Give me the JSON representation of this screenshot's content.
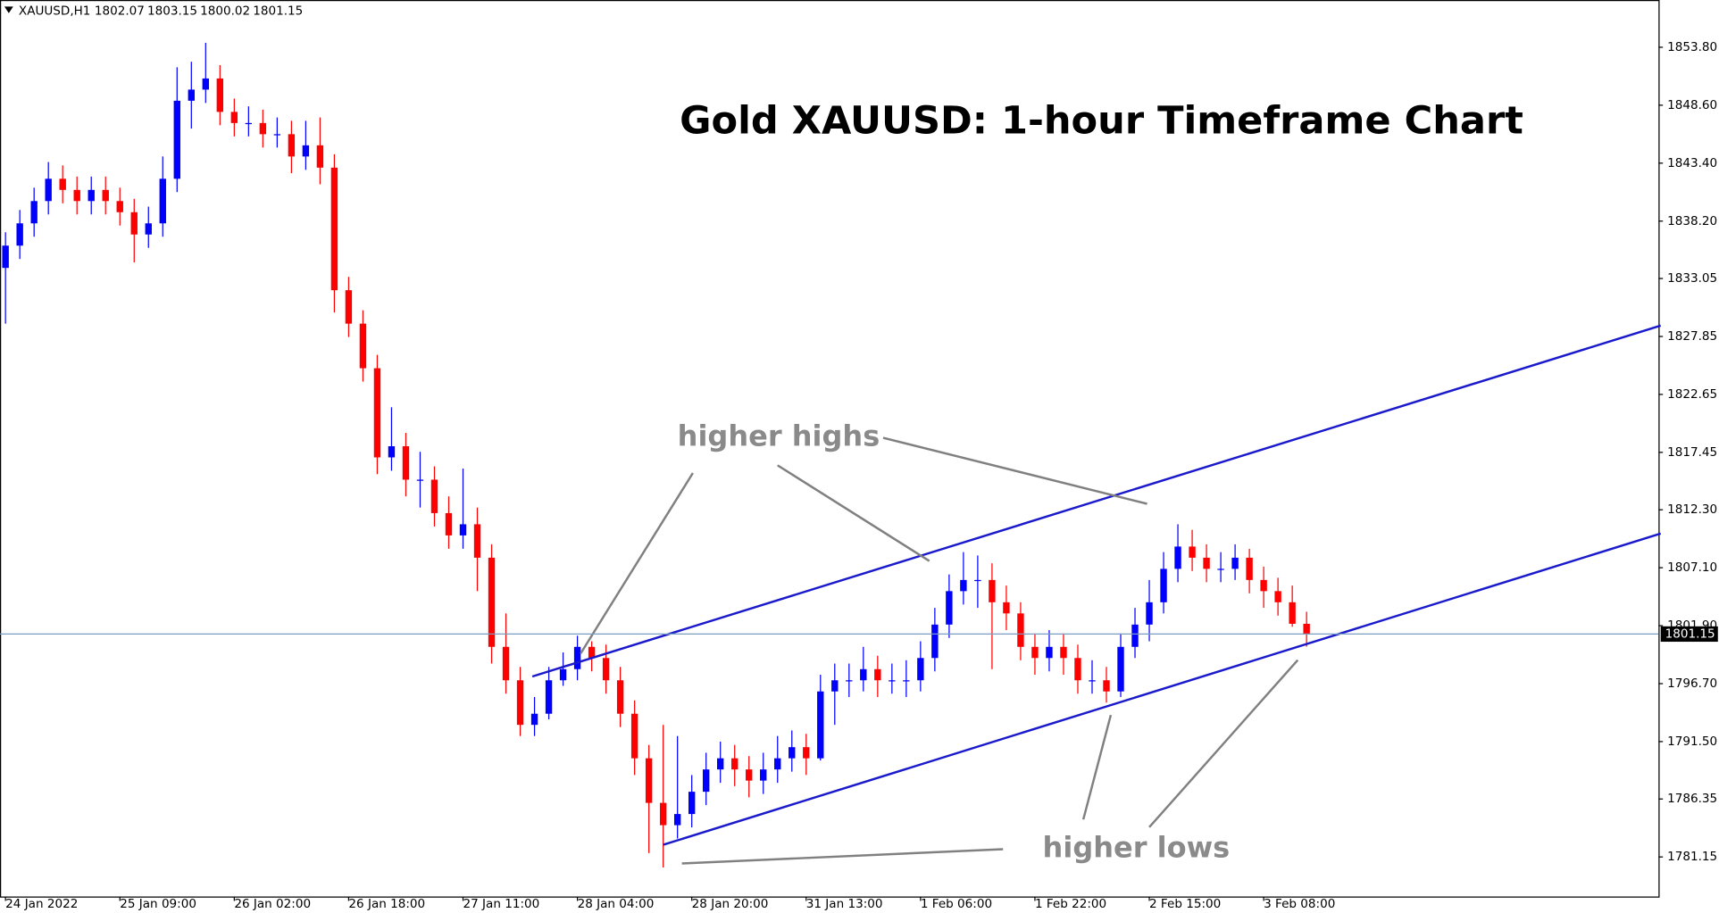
{
  "chart_data": {
    "type": "candlestick",
    "title": "Gold XAUUSD: 1-hour Timeframe Chart",
    "symbol": "XAUUSD,H1",
    "annotations": [
      "higher highs",
      "higher lows"
    ],
    "categories": [
      "24 Jan 2022",
      null,
      null,
      null,
      null,
      null,
      null,
      null,
      "25 Jan 09:00",
      null,
      null,
      null,
      null,
      null,
      null,
      null,
      "26 Jan 02:00",
      null,
      null,
      null,
      null,
      null,
      null,
      null,
      "26 Jan 18:00",
      null,
      null,
      null,
      null,
      null,
      null,
      null,
      "27 Jan 11:00",
      null,
      null,
      null,
      null,
      null,
      null,
      null,
      "28 Jan 04:00",
      null,
      null,
      null,
      null,
      null,
      null,
      null,
      "28 Jan 20:00",
      null,
      null,
      null,
      null,
      null,
      null,
      null,
      "31 Jan 13:00",
      null,
      null,
      null,
      null,
      null,
      null,
      null,
      "1 Feb 06:00",
      null,
      null,
      null,
      null,
      null,
      null,
      null,
      "1 Feb 22:00",
      null,
      null,
      null,
      null,
      null,
      null,
      null,
      "2 Feb 15:00",
      null,
      null,
      null,
      null,
      null,
      null,
      null,
      "3 Feb 08:00",
      null,
      null,
      null
    ],
    "open": [
      1834,
      1836,
      1838,
      1840,
      1842,
      1841,
      1840,
      1841,
      1840,
      1839,
      1837,
      1838,
      1842,
      1849,
      1850,
      1851,
      1848,
      1847,
      1847,
      1846,
      1846,
      1844,
      1845,
      1843,
      1832,
      1829,
      1825,
      1817,
      1818,
      1815,
      1815,
      1812,
      1810,
      1811,
      1808,
      1800,
      1797,
      1793,
      1794,
      1797,
      1798,
      1800,
      1799,
      1797,
      1794,
      1790,
      1786,
      1784,
      1785,
      1787,
      1789,
      1790,
      1789,
      1788,
      1789,
      1790,
      1791,
      1790,
      1796,
      1797,
      1797,
      1798,
      1797,
      1797,
      1797,
      1799,
      1802,
      1805,
      1806,
      1806,
      1804,
      1803,
      1800,
      1799,
      1800,
      1799,
      1797,
      1797,
      1796,
      1800,
      1802,
      1804,
      1807,
      1809,
      1808,
      1807,
      1807,
      1808,
      1806,
      1805,
      1804,
      1802.07
    ],
    "high": [
      1837.2,
      1839.2,
      1841.2,
      1843.5,
      1843.2,
      1842.2,
      1842.2,
      1842.2,
      1841.2,
      1840.2,
      1839.5,
      1844,
      1852,
      1852.5,
      1854.2,
      1852.2,
      1849.2,
      1848.5,
      1848.2,
      1847.5,
      1847.2,
      1847.2,
      1847.5,
      1844.2,
      1833.2,
      1830.2,
      1826.2,
      1821.5,
      1819.2,
      1817.5,
      1816.2,
      1813.5,
      1816,
      1812.5,
      1809.2,
      1803,
      1798.2,
      1795.5,
      1798.2,
      1799.5,
      1801,
      1800.5,
      1800.2,
      1798.2,
      1795.2,
      1791.2,
      1793,
      1792,
      1788.5,
      1790.5,
      1791.5,
      1791.2,
      1790.2,
      1790.5,
      1792,
      1792.5,
      1792.2,
      1797.5,
      1798.5,
      1798.5,
      1800,
      1799.2,
      1798.5,
      1798.8,
      1800.5,
      1803.5,
      1806.5,
      1808.5,
      1808.2,
      1807.5,
      1805.5,
      1804,
      1801.2,
      1801.5,
      1801.2,
      1800.2,
      1798.8,
      1798.2,
      1801.2,
      1803.5,
      1806,
      1808.5,
      1811,
      1810.5,
      1809.2,
      1808.5,
      1809.2,
      1808.8,
      1807.2,
      1806.2,
      1805.5,
      1803.15
    ],
    "low": [
      1829,
      1834.8,
      1836.8,
      1838.8,
      1839.8,
      1838.8,
      1838.8,
      1838.8,
      1837.8,
      1834.5,
      1835.8,
      1836.8,
      1840.8,
      1846.5,
      1848.8,
      1846.8,
      1845.8,
      1845.8,
      1844.8,
      1844.8,
      1842.5,
      1842.8,
      1841.5,
      1830,
      1827.8,
      1823.8,
      1815.5,
      1815.8,
      1813.5,
      1812.5,
      1810.8,
      1808.8,
      1808.8,
      1805,
      1798.5,
      1795.8,
      1792,
      1792,
      1793.5,
      1796.5,
      1797,
      1797.8,
      1795.8,
      1792.8,
      1788.5,
      1781.5,
      1780.2,
      1782.8,
      1783.8,
      1785.8,
      1787.8,
      1787.5,
      1786.5,
      1786.8,
      1787.8,
      1788.8,
      1788.5,
      1789.8,
      1793,
      1795.5,
      1796,
      1795.5,
      1795.8,
      1795.5,
      1796,
      1797.8,
      1800.8,
      1803.8,
      1803.5,
      1798,
      1801.5,
      1798.8,
      1797.5,
      1797.8,
      1797.5,
      1795.8,
      1795.8,
      1795,
      1795.5,
      1799,
      1800.5,
      1803,
      1805.8,
      1806.8,
      1805.8,
      1805.8,
      1806,
      1804.8,
      1803.5,
      1802.8,
      1801.8,
      1800.02
    ],
    "close": [
      1836,
      1838,
      1840,
      1842,
      1841,
      1840,
      1841,
      1840,
      1839,
      1837,
      1838,
      1842,
      1849,
      1850,
      1851,
      1848,
      1847,
      1847,
      1846,
      1846,
      1844,
      1845,
      1843,
      1832,
      1829,
      1825,
      1817,
      1818,
      1815,
      1815,
      1812,
      1810,
      1811,
      1808,
      1800,
      1797,
      1793,
      1794,
      1797,
      1798,
      1800,
      1799,
      1797,
      1794,
      1790,
      1786,
      1784,
      1785,
      1787,
      1789,
      1790,
      1789,
      1788,
      1789,
      1790,
      1791,
      1790,
      1796,
      1797,
      1797,
      1798,
      1797,
      1797,
      1797,
      1799,
      1802,
      1805,
      1806,
      1806,
      1804,
      1803,
      1800,
      1799,
      1800,
      1799,
      1797,
      1797,
      1796,
      1800,
      1802,
      1804,
      1807,
      1809,
      1808,
      1807,
      1807,
      1808,
      1806,
      1805,
      1804,
      1802.07,
      1801.15
    ],
    "up_color": "#0000ff",
    "down_color": "#ff0000",
    "ylim": [
      1777.6,
      1858.04
    ],
    "yticks": [
      {
        "value": 1853.8,
        "label": "1853.80"
      },
      {
        "value": 1848.6,
        "label": "1848.60"
      },
      {
        "value": 1843.4,
        "label": "1843.40"
      },
      {
        "value": 1838.2,
        "label": "1838.20"
      },
      1833.05,
      1827.85,
      1822.65,
      1817.45,
      {
        "value": 1812.3,
        "label": "1812.30"
      },
      {
        "value": 1807.1,
        "label": "1807.10"
      },
      {
        "value": 1801.9,
        "label": "1801.90"
      },
      {
        "value": 1796.7,
        "label": "1796.70"
      },
      {
        "value": 1791.5,
        "label": "1791.50"
      },
      1786.35,
      1781.15
    ]
  }
}
